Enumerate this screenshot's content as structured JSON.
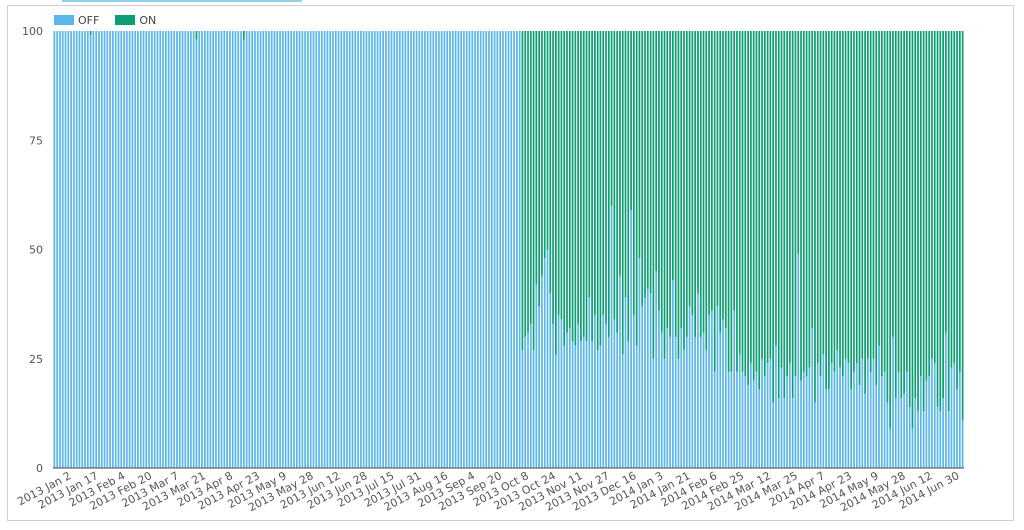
{
  "chart_data": {
    "type": "bar",
    "stacked": true,
    "ylim": [
      0,
      100
    ],
    "yticks": [
      0,
      25,
      50,
      75,
      100
    ],
    "legend": {
      "placement": "top-left"
    },
    "series": [
      {
        "name": "OFF",
        "color": "#5bb7ea"
      },
      {
        "name": "ON",
        "color": "#0e9e73"
      }
    ],
    "x_tick_labels": [
      "2013 Jan 2",
      "2013 Jan 17",
      "2013 Feb 4",
      "2013 Feb 20",
      "2013 Mar 7",
      "2013 Mar 21",
      "2013 Apr 8",
      "2013 Apr 23",
      "2013 May 9",
      "2013 May 28",
      "2013 Jun 12",
      "2013 Jun 28",
      "2013 Jul 15",
      "2013 Jul 31",
      "2013 Aug 16",
      "2013 Sep 4",
      "2013 Sep 20",
      "2013 Oct 8",
      "2013 Oct 24",
      "2013 Nov 11",
      "2013 Nov 27",
      "2013 Dec 16",
      "2014 Jan 3",
      "2014 Jan 21",
      "2014 Feb 6",
      "2014 Feb 25",
      "2014 Mar 12",
      "2014 Mar 25",
      "2014 Apr 7",
      "2014 Apr 23",
      "2014 May 9",
      "2014 May 28",
      "2014 Jun 12",
      "2014 Jun 30"
    ],
    "off_values": [
      100,
      100,
      100,
      100,
      100,
      100,
      100,
      100,
      100,
      100,
      100,
      100,
      100,
      99,
      100,
      100,
      100,
      100,
      100,
      100,
      100,
      100,
      100,
      100,
      100,
      100,
      100,
      100,
      100,
      100,
      100,
      100,
      100,
      100,
      100,
      100,
      100,
      100,
      100,
      100,
      100,
      100,
      100,
      100,
      100,
      100,
      100,
      100,
      100,
      100,
      100,
      98,
      100,
      100,
      100,
      100,
      100,
      100,
      100,
      100,
      100,
      100,
      100,
      100,
      100,
      100,
      100,
      100,
      98,
      100,
      100,
      100,
      100,
      100,
      100,
      100,
      100,
      100,
      100,
      100,
      100,
      100,
      100,
      100,
      100,
      100,
      100,
      100,
      100,
      100,
      100,
      100,
      100,
      100,
      100,
      100,
      100,
      100,
      100,
      100,
      100,
      100,
      100,
      100,
      100,
      100,
      100,
      100,
      100,
      100,
      100,
      100,
      100,
      100,
      100,
      100,
      100,
      100,
      100,
      100,
      100,
      100,
      100,
      100,
      100,
      100,
      100,
      100,
      100,
      100,
      100,
      100,
      100,
      100,
      100,
      100,
      100,
      100,
      100,
      100,
      100,
      100,
      100,
      100,
      100,
      100,
      100,
      100,
      100,
      100,
      100,
      100,
      100,
      100,
      100,
      100,
      100,
      100,
      100,
      100,
      100,
      100,
      100,
      100,
      100,
      100,
      100,
      100,
      27,
      30,
      31,
      33,
      27,
      42,
      37,
      44,
      48,
      50,
      40,
      33,
      26,
      35,
      34,
      28,
      31,
      32,
      29,
      28,
      33,
      29,
      30,
      29,
      39,
      29,
      35,
      27,
      28,
      35,
      33,
      30,
      60,
      34,
      31,
      44,
      26,
      39,
      29,
      59,
      35,
      28,
      48,
      37,
      39,
      41,
      40,
      25,
      45,
      36,
      31,
      25,
      32,
      30,
      43,
      30,
      25,
      32,
      27,
      30,
      37,
      35,
      30,
      40,
      30,
      31,
      27,
      35,
      36,
      22,
      37,
      31,
      34,
      32,
      22,
      22,
      36,
      22,
      26,
      22,
      21,
      19,
      24,
      20,
      22,
      18,
      25,
      21,
      24,
      25,
      15,
      28,
      16,
      23,
      16,
      21,
      24,
      16,
      21,
      49,
      20,
      22,
      21,
      23,
      32,
      15,
      24,
      21,
      26,
      18,
      18,
      24,
      22,
      27,
      23,
      21,
      25,
      24,
      18,
      22,
      24,
      19,
      25,
      17,
      25,
      22,
      25,
      19,
      28,
      21,
      22,
      15,
      9,
      30,
      16,
      22,
      16,
      17,
      22,
      14,
      9,
      16,
      13,
      21,
      13,
      20,
      21,
      25,
      24,
      14,
      13,
      16,
      31,
      13,
      23,
      24,
      18,
      22,
      11
    ]
  }
}
